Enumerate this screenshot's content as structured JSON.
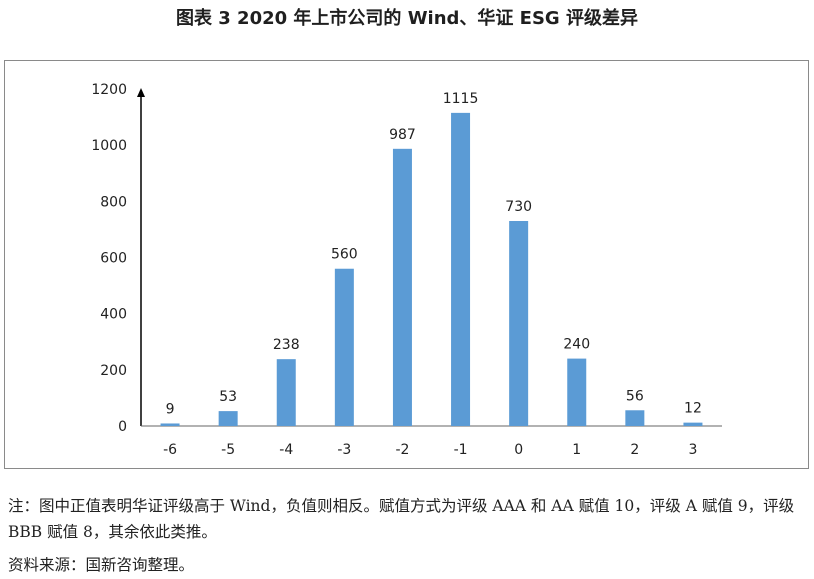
{
  "title": "图表 3  2020 年上市公司的 Wind、华证 ESG 评级差异",
  "note": "注：图中正值表明华证评级高于 Wind，负值则相反。赋值方式为评级 AAA 和 AA 赋值 10，评级 A 赋值 9，评级 BBB 赋值 8，其余依此类推。",
  "source": "资料来源：国新咨询整理。",
  "chart_data": {
    "type": "bar",
    "title": "",
    "xlabel": "",
    "ylabel": "",
    "categories": [
      "-6",
      "-5",
      "-4",
      "-3",
      "-2",
      "-1",
      "0",
      "1",
      "2",
      "3"
    ],
    "values": [
      9,
      53,
      238,
      560,
      987,
      1115,
      730,
      240,
      56,
      12
    ],
    "ylim": [
      0,
      1200
    ],
    "yticks": [
      0,
      200,
      400,
      600,
      800,
      1000,
      1200
    ],
    "grid": false,
    "legend": "none",
    "bar_color": "#5b9bd5",
    "data_labels": true
  }
}
